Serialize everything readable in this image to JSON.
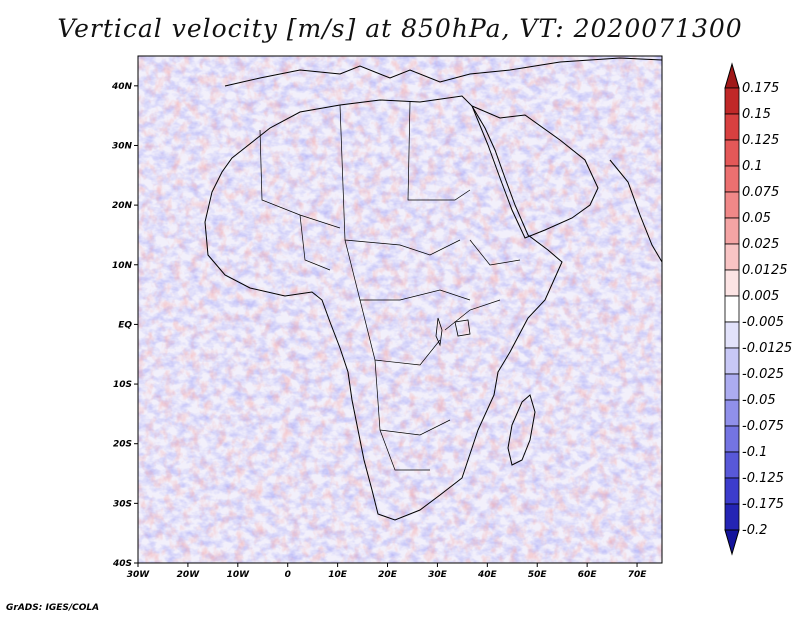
{
  "title": "Vertical velocity [m/s] at 850hPa, VT: 2020071300",
  "credit": "GrADS: IGES/COLA",
  "map": {
    "lon_range": [
      -30,
      75
    ],
    "lat_range": [
      -40,
      45
    ],
    "x_ticks": [
      "30W",
      "20W",
      "10W",
      "0",
      "10E",
      "20E",
      "30E",
      "40E",
      "50E",
      "60E",
      "70E"
    ],
    "y_ticks": [
      "40N",
      "30N",
      "20N",
      "10N",
      "EQ",
      "10S",
      "20S",
      "30S",
      "40S"
    ]
  },
  "colorbar": {
    "labels": [
      "0.175",
      "0.15",
      "0.125",
      "0.1",
      "0.075",
      "0.05",
      "0.025",
      "0.0125",
      "0.005",
      "-0.005",
      "-0.0125",
      "-0.025",
      "-0.05",
      "-0.075",
      "-0.1",
      "-0.125",
      "-0.175",
      "-0.2"
    ],
    "colors": [
      "#a01818",
      "#c02828",
      "#d84040",
      "#e45858",
      "#ec7070",
      "#f08888",
      "#f4a4a4",
      "#f8c4c4",
      "#fce4e4",
      "#ffffff",
      "#e2e2fa",
      "#c8c8f6",
      "#acacf0",
      "#9090ea",
      "#7474e2",
      "#5858d8",
      "#3c3ccc",
      "#2424b4",
      "#14149c"
    ]
  }
}
